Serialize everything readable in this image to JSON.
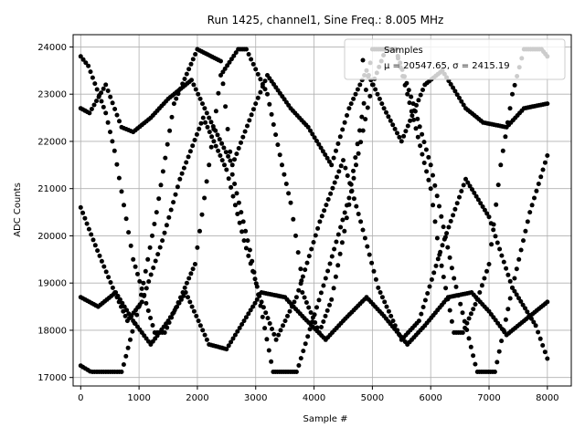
{
  "chart_data": {
    "type": "scatter",
    "title": "Run 1425, channel1, Sine Freq.: 8.005 MHz",
    "xlabel": "Sample #",
    "ylabel": "ADC Counts",
    "xlim": [
      -130,
      8410
    ],
    "ylim": [
      16820,
      24260
    ],
    "xticks": [
      0,
      1000,
      2000,
      3000,
      4000,
      5000,
      6000,
      7000,
      8000
    ],
    "yticks": [
      17000,
      18000,
      19000,
      20000,
      21000,
      22000,
      23000,
      24000
    ],
    "grid": true,
    "legend_position": "top-right",
    "marker_color": "#000000",
    "series": [
      {
        "name": "Samples",
        "legend_label": "Samples",
        "legend_stats": "μ = 20547.65, σ = 2415.19",
        "n_points": 8001,
        "min": 17120,
        "max": 23950,
        "traces": [
          {
            "description": "falling from 23800",
            "x": [
              0,
              130,
              430,
              580,
              900,
              1270,
              1440,
              1750,
              1960,
              2200,
              2400,
              2700,
              2840,
              3200,
              3450,
              3600,
              3770,
              3800,
              4090,
              4300,
              4520,
              4720,
              5000,
              5230,
              5400,
              5600,
              6000,
              6150,
              6400,
              6550,
              6800,
              7000,
              7200,
              7400,
              7600,
              7900,
              8000
            ],
            "y": [
              23800,
              23600,
              22600,
              21800,
              19500,
              17950,
              17950,
              18800,
              19400,
              21500,
              23400,
              23950,
              23950,
              23000,
              21500,
              20700,
              19300,
              18800,
              17950,
              18650,
              20100,
              21500,
              23200,
              23950,
              23950,
              23000,
              21000,
              19600,
              17950,
              17950,
              18650,
              19400,
              21500,
              23000,
              23950,
              23950,
              23800
            ]
          },
          {
            "description": "upper zigzag",
            "x": [
              0,
              150,
              430,
              700,
              900,
              1200,
              1500,
              1900,
              2200,
              2600,
              3000,
              3200,
              3600,
              3900,
              4300,
              4600,
              4900,
              5200,
              5500,
              5900,
              6200,
              6600,
              6900,
              7300,
              7600,
              8000
            ],
            "y": [
              22700,
              22600,
              23200,
              22300,
              22200,
              22500,
              22900,
              23300,
              22500,
              21500,
              22800,
              23400,
              22700,
              22300,
              21500,
              22700,
              23500,
              22700,
              22000,
              23200,
              23500,
              22700,
              22400,
              22300,
              22700,
              22800
            ]
          },
          {
            "description": "rising from 17200",
            "x": [
              0,
              200,
              700,
              1000,
              1300,
              1600,
              2000,
              2400,
              2600,
              2900,
              3300,
              3700,
              4200,
              4600,
              5000,
              5400,
              5700,
              6000,
              6400,
              6800,
              7100,
              7400,
              7700,
              8000
            ],
            "y": [
              17250,
              17100,
              17100,
              18500,
              20500,
              22800,
              23950,
              23700,
              21300,
              19700,
              17100,
              17100,
              19100,
              20800,
              23950,
              23950,
              22800,
              21500,
              19100,
              17100,
              17100,
              18900,
              20500,
              21700
            ]
          },
          {
            "description": "crossing lower branch",
            "x": [
              0,
              250,
              550,
              800,
              1050,
              1400,
              1700,
              2100,
              2500,
              2800,
              3100,
              3350,
              3700,
              4100,
              4500,
              4800,
              5100,
              5500,
              5800,
              6200,
              6600,
              7000,
              7400,
              7800,
              8000
            ],
            "y": [
              20600,
              19800,
              18900,
              18200,
              18600,
              19900,
              21200,
              22500,
              21400,
              19900,
              18600,
              17800,
              18700,
              20300,
              21600,
              20300,
              18900,
              17800,
              18200,
              19800,
              21200,
              20400,
              18900,
              18100,
              17400
            ]
          },
          {
            "description": "lower zigzag",
            "x": [
              0,
              300,
              600,
              900,
              1200,
              1500,
              1800,
              2200,
              2500,
              2800,
              3100,
              3500,
              3800,
              4200,
              4500,
              4900,
              5200,
              5600,
              5900,
              6300,
              6700,
              7000,
              7300,
              7600,
              8000
            ],
            "y": [
              18700,
              18500,
              18800,
              18200,
              17700,
              18200,
              18800,
              17700,
              17600,
              18200,
              18800,
              18700,
              18300,
              17800,
              18200,
              18700,
              18300,
              17700,
              18100,
              18700,
              18800,
              18400,
              17900,
              18200,
              18600
            ]
          }
        ]
      }
    ]
  }
}
